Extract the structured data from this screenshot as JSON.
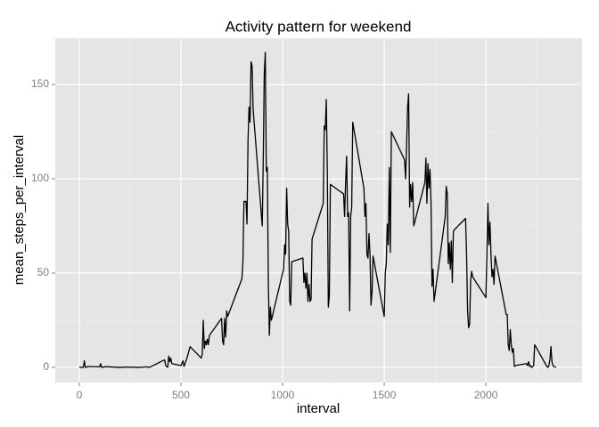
{
  "chart_data": {
    "type": "line",
    "title": "Activity pattern for weekend",
    "x_label": "interval",
    "y_label": "mean_steps_per_interval",
    "x": [
      0,
      10,
      20,
      25,
      30,
      45,
      100,
      105,
      110,
      130,
      200,
      230,
      300,
      330,
      345,
      400,
      420,
      425,
      435,
      440,
      445,
      450,
      455,
      500,
      510,
      515,
      520,
      530,
      545,
      600,
      605,
      610,
      615,
      620,
      625,
      630,
      635,
      640,
      700,
      705,
      710,
      715,
      720,
      725,
      730,
      800,
      805,
      810,
      820,
      825,
      830,
      835,
      840,
      845,
      850,
      855,
      900,
      905,
      910,
      915,
      920,
      925,
      930,
      935,
      940,
      945,
      1000,
      1005,
      1010,
      1015,
      1020,
      1025,
      1030,
      1035,
      1040,
      1045,
      1100,
      1105,
      1110,
      1115,
      1120,
      1125,
      1130,
      1135,
      1140,
      1145,
      1200,
      1205,
      1210,
      1215,
      1220,
      1225,
      1230,
      1235,
      1300,
      1305,
      1310,
      1315,
      1320,
      1325,
      1330,
      1335,
      1340,
      1345,
      1400,
      1405,
      1410,
      1415,
      1420,
      1425,
      1430,
      1435,
      1440,
      1445,
      1500,
      1505,
      1510,
      1515,
      1520,
      1525,
      1530,
      1535,
      1600,
      1605,
      1610,
      1615,
      1620,
      1625,
      1630,
      1635,
      1640,
      1645,
      1700,
      1705,
      1710,
      1715,
      1720,
      1725,
      1730,
      1735,
      1740,
      1745,
      1800,
      1805,
      1810,
      1815,
      1820,
      1825,
      1830,
      1835,
      1840,
      1845,
      1900,
      1905,
      1910,
      1915,
      1920,
      1925,
      1930,
      1935,
      2000,
      2005,
      2010,
      2015,
      2020,
      2025,
      2030,
      2035,
      2040,
      2045,
      2100,
      2105,
      2110,
      2115,
      2120,
      2125,
      2130,
      2135,
      2140,
      2145,
      2200,
      2205,
      2210,
      2215,
      2220,
      2225,
      2235,
      2240,
      2300,
      2305,
      2310,
      2315,
      2320,
      2325,
      2330,
      2335,
      2345
    ],
    "series": [
      {
        "name": "mean_steps_per_interval",
        "color": "#000000",
        "values": [
          0.2,
          0,
          0,
          3.5,
          0,
          0.5,
          0.3,
          2,
          0,
          0.4,
          0,
          0.2,
          0,
          0.3,
          0,
          3,
          4,
          1,
          0,
          6,
          3,
          5,
          2,
          1,
          3.5,
          0.5,
          2,
          5,
          11,
          5,
          7,
          25,
          10,
          14,
          12,
          15,
          12,
          17,
          26,
          14,
          12,
          26,
          16,
          30,
          27,
          47,
          56,
          88,
          88,
          76,
          120,
          138,
          130,
          162,
          160,
          137,
          75,
          110,
          156,
          167,
          104,
          106,
          45,
          17,
          32,
          25,
          50,
          52,
          65,
          60,
          95,
          76,
          72,
          35,
          33,
          56,
          58,
          45,
          50,
          42,
          50,
          35,
          44,
          35,
          36,
          68,
          87,
          128,
          126,
          142,
          105,
          32,
          38,
          97,
          92,
          80,
          98,
          112,
          80,
          82,
          30,
          80,
          85,
          130,
          95,
          80,
          87,
          60,
          58,
          71,
          60,
          33,
          40,
          59,
          27,
          50,
          55,
          76,
          65,
          106,
          61,
          125,
          110,
          100,
          118,
          138,
          145,
          85,
          97,
          88,
          98,
          75,
          98,
          111,
          87,
          108,
          95,
          105,
          88,
          43,
          52,
          35,
          80,
          96,
          92,
          55,
          66,
          52,
          67,
          45,
          72,
          73,
          79,
          60,
          30,
          21,
          23,
          46,
          51,
          48,
          37,
          60,
          87,
          65,
          77,
          60,
          48,
          52,
          44,
          59,
          28,
          28,
          12,
          9,
          20,
          12,
          8,
          10,
          0.5,
          1,
          2,
          1,
          3,
          0.5,
          1,
          0,
          1,
          12,
          0.5,
          0,
          1,
          4,
          11,
          3,
          1,
          0.5,
          0
        ]
      }
    ],
    "xlim": [
      -118,
      2473
    ],
    "ylim": [
      -8,
      174.5
    ],
    "xticks": [
      0,
      500,
      1000,
      1500,
      2000
    ],
    "yticks": [
      0,
      50,
      100,
      150
    ],
    "xminor": [
      250,
      750,
      1250,
      1750,
      2250
    ],
    "yminor": [
      25,
      75,
      125
    ],
    "grid": true
  }
}
